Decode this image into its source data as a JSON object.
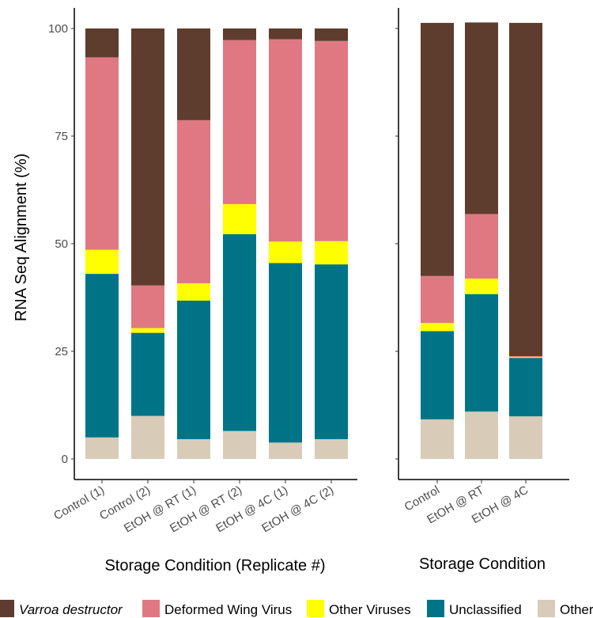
{
  "chart_data": [
    {
      "type": "bar",
      "stacked": true,
      "xlabel": "Storage Condition (Replicate #)",
      "ylabel": "RNA Seq Alignment (%)",
      "ylim": [
        0,
        100
      ],
      "yticks": [
        "0",
        "25",
        "50",
        "75",
        "100"
      ],
      "categories": [
        "Control (1)",
        "Control (2)",
        "EtOH @ RT (1)",
        "EtOH @ RT (2)",
        "EtOH @ 4C (1)",
        "EtOH @ 4C (2)"
      ],
      "series": [
        {
          "name": "Other",
          "color": "#d8cbb8",
          "values": [
            5,
            10,
            4.6,
            6.5,
            3.8,
            4.6
          ]
        },
        {
          "name": "Unclassified",
          "color": "#007487",
          "values": [
            38,
            19.3,
            32.2,
            45.7,
            41.7,
            40.6
          ]
        },
        {
          "name": "Other Viruses",
          "color": "#ffff00",
          "values": [
            5.6,
            1.1,
            4.0,
            7.0,
            5.0,
            5.4
          ]
        },
        {
          "name": "Deformed Wing Virus",
          "color": "#e07882",
          "values": [
            44.7,
            9.9,
            37.9,
            38.1,
            47.0,
            46.5
          ]
        },
        {
          "name": "Varroa destructor",
          "color": "#5e3c2e",
          "values": [
            6.7,
            59.7,
            21.3,
            2.7,
            2.5,
            2.9
          ]
        }
      ]
    },
    {
      "type": "bar",
      "stacked": true,
      "xlabel": "Storage Condition",
      "ylabel": "",
      "ylim": [
        0,
        100
      ],
      "categories": [
        "Control",
        "EtOH @ RT",
        "EtOH @ 4C"
      ],
      "series": [
        {
          "name": "Other",
          "color": "#d8cbb8",
          "values": [
            9.2,
            11.0,
            9.9
          ]
        },
        {
          "name": "Unclassified",
          "color": "#007487",
          "values": [
            20.5,
            27.3,
            13.6
          ]
        },
        {
          "name": "Other Viruses",
          "color": "#ffff00",
          "values": [
            1.9,
            3.6,
            0.2
          ]
        },
        {
          "name": "Deformed Wing Virus",
          "color": "#e07882",
          "values": [
            10.9,
            15.0,
            0.2
          ]
        },
        {
          "name": "Varroa destructor",
          "color": "#5e3c2e",
          "values": [
            58.8,
            44.5,
            77.4
          ]
        }
      ]
    }
  ],
  "legend": {
    "position": "bottom",
    "items": [
      {
        "label": "Varroa destructor",
        "color": "#5e3c2e",
        "italic": true
      },
      {
        "label": "Deformed Wing Virus",
        "color": "#e07882",
        "italic": false
      },
      {
        "label": "Other Viruses",
        "color": "#ffff00",
        "italic": false
      },
      {
        "label": "Unclassified",
        "color": "#007487",
        "italic": false
      },
      {
        "label": "Other",
        "color": "#d8cbb8",
        "italic": false
      }
    ]
  }
}
